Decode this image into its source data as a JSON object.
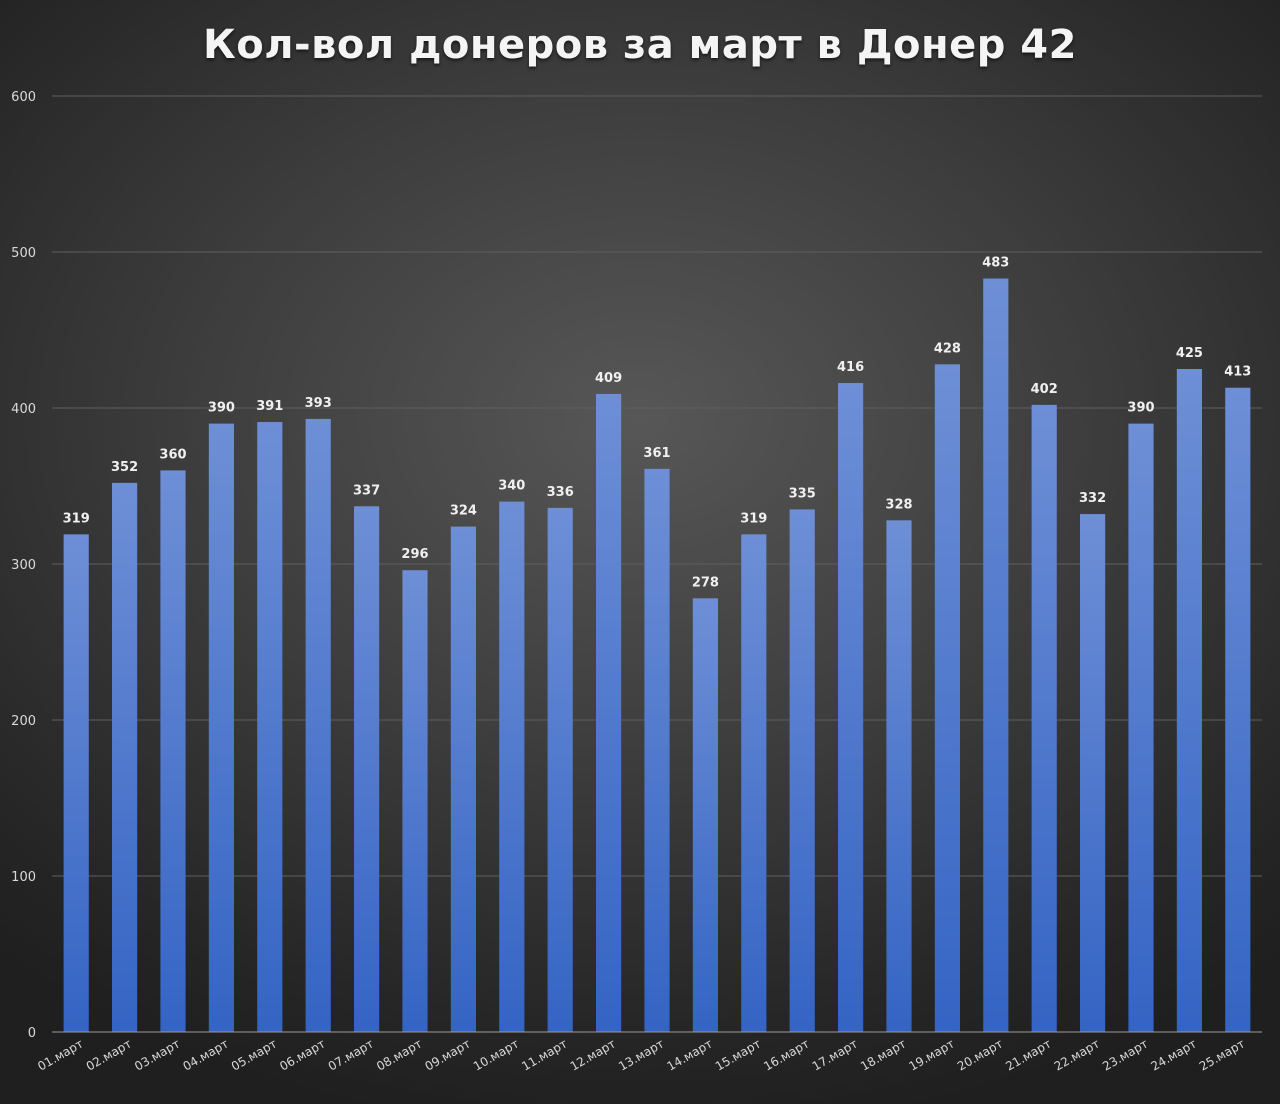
{
  "chart_data": {
    "type": "bar",
    "title": "Кол-вол донеров за март в Донер 42",
    "xlabel": "",
    "ylabel": "",
    "ylim": [
      0,
      600
    ],
    "yticks": [
      0,
      100,
      200,
      300,
      400,
      500,
      600
    ],
    "grid": true,
    "legend": "none",
    "categories": [
      "01.март",
      "02.март",
      "03.март",
      "04.март",
      "05.март",
      "06.март",
      "07.март",
      "08.март",
      "09.март",
      "10.март",
      "11.март",
      "12.март",
      "13.март",
      "14.март",
      "15.март",
      "16.март",
      "17.март",
      "18.март",
      "19.март",
      "20.март",
      "21.март",
      "22.март",
      "23.март",
      "24.март",
      "25.март"
    ],
    "values": [
      319,
      352,
      360,
      390,
      391,
      393,
      337,
      296,
      324,
      340,
      336,
      409,
      361,
      278,
      319,
      335,
      416,
      328,
      428,
      483,
      402,
      332,
      390,
      425,
      413
    ],
    "colors": {
      "bar_top": "#6e8fd6",
      "bar_bottom": "#3464c4",
      "grid": "#5f5f5f",
      "axis": "#9a9a9a",
      "text": "#d9d9d9"
    }
  }
}
